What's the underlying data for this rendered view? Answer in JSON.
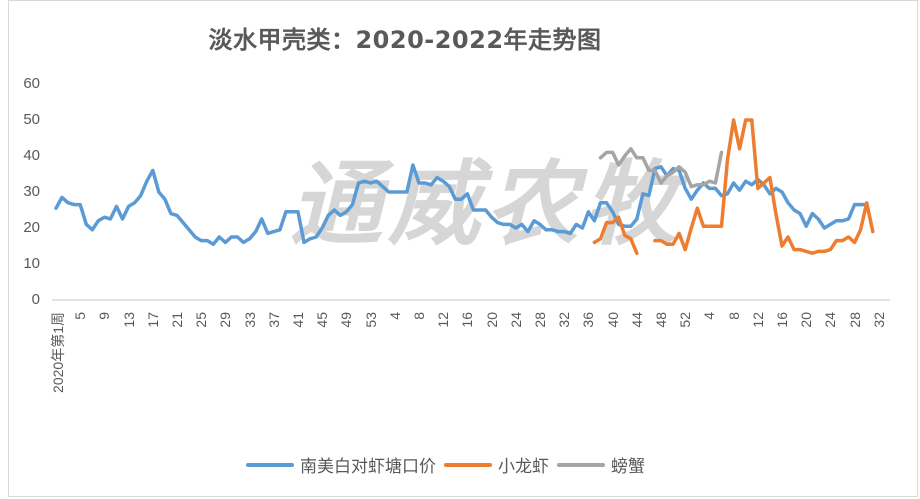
{
  "title": "淡水甲壳类：2020-2022年走势图",
  "watermark": "通威农牧",
  "chart_data": {
    "type": "line",
    "title": "淡水甲壳类：2020-2022年走势图",
    "xlabel": "",
    "ylabel": "",
    "ylim": [
      0,
      60
    ],
    "yticks": [
      "0",
      "10",
      "20",
      "30",
      "40",
      "50",
      "60"
    ],
    "grid": false,
    "legend_position": "bottom",
    "x_tick_labels": [
      "2020年第1周",
      "5",
      "9",
      "13",
      "17",
      "21",
      "25",
      "29",
      "33",
      "37",
      "41",
      "45",
      "49",
      "53",
      "4",
      "8",
      "12",
      "16",
      "20",
      "24",
      "28",
      "32",
      "36",
      "40",
      "44",
      "48",
      "52",
      "4",
      "8",
      "12",
      "16",
      "20",
      "24",
      "28",
      "32"
    ],
    "x_description": "Weekly, 2020 W1–W53, 2021 W1–W52, 2022 W1–W30",
    "series": [
      {
        "name": "南美白对虾塘口价",
        "color": "#5b9bd5",
        "start_index": 0,
        "values": [
          25.5,
          28.5,
          27,
          26.5,
          26.5,
          21,
          19.5,
          22,
          23,
          22.5,
          26,
          22.5,
          26,
          27,
          29,
          33,
          36,
          30,
          28,
          24,
          23.5,
          21.5,
          19.5,
          17.5,
          16.5,
          16.5,
          15.5,
          17.5,
          16,
          17.5,
          17.5,
          16,
          17,
          19,
          22.5,
          18.5,
          19,
          19.5,
          24.5,
          24.5,
          24.5,
          16,
          17,
          17.5,
          20,
          23.5,
          25,
          23.5,
          24.5,
          26.5,
          32.5,
          33,
          32.5,
          33,
          31.5,
          30,
          30,
          30,
          30,
          37.5,
          32.5,
          32.5,
          32,
          34,
          33,
          31.5,
          28,
          28,
          29.5,
          25,
          25,
          25,
          23,
          21.5,
          21,
          21,
          20,
          21,
          19,
          22,
          21,
          19.5,
          19.5,
          19,
          19,
          18.5,
          21,
          20,
          24.5,
          22,
          27,
          27,
          24.5,
          21,
          20.5,
          20.5,
          22.5,
          29.5,
          29,
          36.5,
          37,
          34.5,
          36.5,
          36,
          31,
          28,
          30.5,
          32.5,
          31,
          31,
          29,
          29.5,
          32.5,
          30.5,
          33,
          32,
          33.5,
          32,
          29.5,
          31,
          30,
          27,
          25,
          24,
          20.5,
          24,
          22.5,
          20,
          21,
          22,
          22,
          22.5,
          26.5,
          26.5,
          26.5
        ]
      },
      {
        "name": "小龙虾",
        "color": "#ed7d31",
        "segments": [
          {
            "start_index": 89,
            "values": [
              16,
              17,
              21.5,
              21.5,
              23,
              18,
              17,
              13
            ]
          },
          {
            "start_index": 99,
            "values": [
              16.5,
              16.5,
              15.5,
              15.5,
              18.5,
              14,
              20,
              25.5,
              20.5,
              20.5,
              20.5,
              20.5,
              39,
              50,
              42,
              50,
              50,
              31,
              32.5,
              34,
              24,
              15,
              17.5,
              14,
              14,
              13.5,
              13,
              13.5,
              13.5,
              14,
              16.5,
              16.5,
              17.5,
              16,
              19.5,
              27,
              19
            ]
          }
        ]
      },
      {
        "name": "螃蟹",
        "color": "#a5a5a5",
        "segments": [
          {
            "start_index": 90,
            "values": [
              39.5,
              41,
              41,
              37.5,
              40,
              42,
              39.5,
              39.5,
              36,
              36,
              32.5,
              34.5,
              35.5,
              37,
              35.5,
              31.5,
              32,
              32,
              33,
              32.5,
              41
            ]
          }
        ]
      }
    ]
  },
  "legend": [
    {
      "label": "南美白对虾塘口价",
      "color": "#5b9bd5"
    },
    {
      "label": "小龙虾",
      "color": "#ed7d31"
    },
    {
      "label": "螃蟹",
      "color": "#a5a5a5"
    }
  ]
}
